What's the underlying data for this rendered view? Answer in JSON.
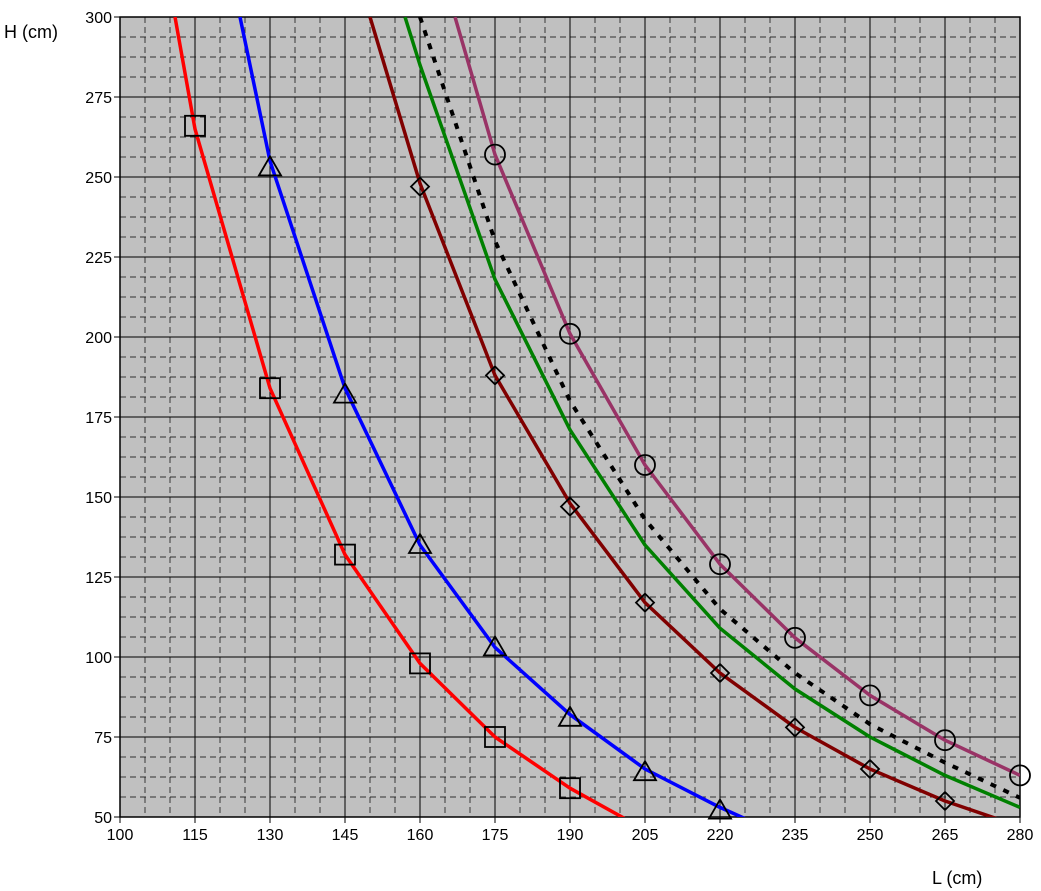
{
  "chart_data": {
    "type": "line",
    "title": "",
    "xlabel": "L (cm)",
    "ylabel": "H (cm)",
    "xlim": [
      100,
      280
    ],
    "ylim": [
      50,
      300
    ],
    "xticks": [
      100,
      115,
      130,
      145,
      160,
      175,
      190,
      205,
      220,
      235,
      250,
      265,
      280
    ],
    "yticks": [
      50,
      75,
      100,
      125,
      150,
      175,
      200,
      225,
      250,
      275,
      300
    ],
    "grid": true,
    "minor_grid_dashed": true,
    "plot_background": "#c0c0c0",
    "series": [
      {
        "color": "#ff0000",
        "marker": "square",
        "line": [
          [
            111,
            300
          ],
          [
            115,
            265
          ],
          [
            130,
            184
          ],
          [
            145,
            132
          ],
          [
            160,
            98
          ],
          [
            175,
            75
          ],
          [
            190,
            59
          ],
          [
            205,
            46
          ]
        ],
        "markers": [
          [
            115,
            266
          ],
          [
            130,
            184
          ],
          [
            145,
            132
          ],
          [
            160,
            98
          ],
          [
            175,
            75
          ],
          [
            190,
            59
          ]
        ]
      },
      {
        "color": "#0000ff",
        "marker": "triangle",
        "line": [
          [
            124,
            300
          ],
          [
            130,
            255
          ],
          [
            145,
            184
          ],
          [
            160,
            135
          ],
          [
            175,
            103
          ],
          [
            190,
            82
          ],
          [
            205,
            65
          ],
          [
            220,
            53
          ],
          [
            230,
            46
          ]
        ],
        "markers": [
          [
            130,
            253
          ],
          [
            145,
            182
          ],
          [
            160,
            135
          ],
          [
            175,
            103
          ],
          [
            190,
            81
          ],
          [
            205,
            64
          ],
          [
            220,
            52
          ]
        ]
      },
      {
        "color": "#800000",
        "marker": "diamond",
        "line": [
          [
            150,
            300
          ],
          [
            160,
            248
          ],
          [
            175,
            188
          ],
          [
            190,
            148
          ],
          [
            205,
            117
          ],
          [
            220,
            95
          ],
          [
            235,
            78
          ],
          [
            250,
            65
          ],
          [
            265,
            55
          ],
          [
            280,
            47
          ]
        ],
        "markers": [
          [
            160,
            247
          ],
          [
            175,
            188
          ],
          [
            190,
            147
          ],
          [
            205,
            117
          ],
          [
            220,
            95
          ],
          [
            235,
            78
          ],
          [
            250,
            65
          ],
          [
            265,
            55
          ]
        ]
      },
      {
        "color": "#008000",
        "marker": "none",
        "line": [
          [
            157,
            300
          ],
          [
            160,
            285
          ],
          [
            175,
            218
          ],
          [
            190,
            171
          ],
          [
            205,
            135
          ],
          [
            220,
            109
          ],
          [
            235,
            90
          ],
          [
            250,
            75
          ],
          [
            265,
            63
          ],
          [
            280,
            53
          ]
        ],
        "markers": []
      },
      {
        "color": "#000000",
        "marker": "none",
        "dashed": true,
        "line": [
          [
            160,
            300
          ],
          [
            175,
            230
          ],
          [
            190,
            180
          ],
          [
            205,
            143
          ],
          [
            220,
            115
          ],
          [
            235,
            95
          ],
          [
            250,
            79
          ],
          [
            265,
            67
          ],
          [
            280,
            56
          ]
        ],
        "markers": []
      },
      {
        "color": "#993366",
        "marker": "circle",
        "line": [
          [
            167,
            300
          ],
          [
            175,
            257
          ],
          [
            190,
            201
          ],
          [
            205,
            160
          ],
          [
            220,
            129
          ],
          [
            235,
            106
          ],
          [
            250,
            88
          ],
          [
            265,
            74
          ],
          [
            280,
            63
          ]
        ],
        "markers": [
          [
            175,
            257
          ],
          [
            190,
            201
          ],
          [
            205,
            160
          ],
          [
            220,
            129
          ],
          [
            235,
            106
          ],
          [
            250,
            88
          ],
          [
            265,
            74
          ],
          [
            280,
            63
          ]
        ]
      }
    ]
  }
}
